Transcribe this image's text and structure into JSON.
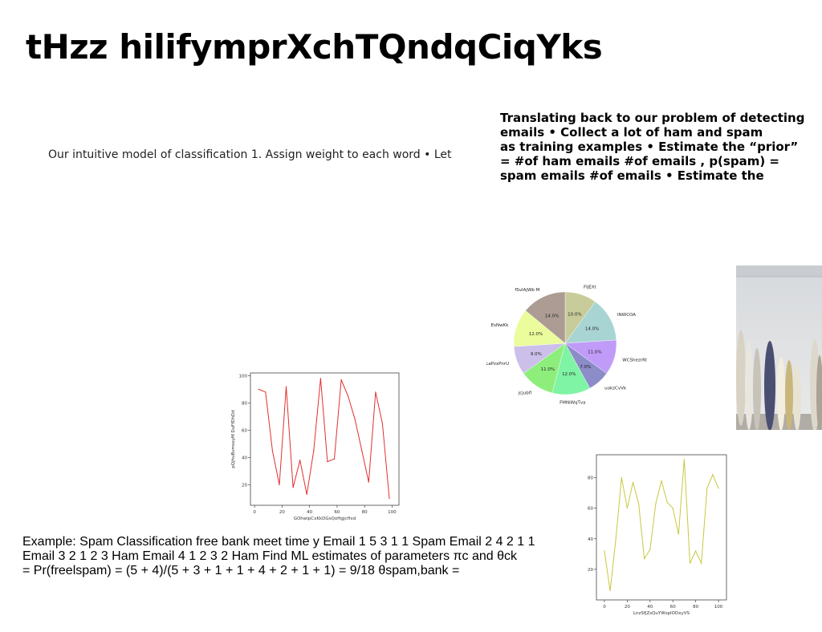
{
  "slide": {
    "title": "tHzz hilifymprXchTQndqCiqYks",
    "intro": "Our intuitive model of classification 1. Assign weight to each word • Let",
    "right_text": [
      "Translating back to our problem of detecting",
      "emails • Collect a lot of ham and spam",
      "as training examples • Estimate the “prior”",
      "= #of ham emails #of emails , p(spam) =",
      "spam emails #of emails • Estimate the"
    ],
    "example": [
      "Example: Spam Classification free bank meet time y Email 1 5 3 1 1 Spam Email 2 4 2 1 1",
      "Email 3 2 1 2 3 Ham Email 4 1 2 3 2 Ham Find ML estimates of parameters πc and θck",
      "= Pr(freelspam) = (5 + 4)/(5 + 3 + 1 + 1 + 4 + 2 + 1 + 1) = 9/18 θspam,bank ="
    ]
  },
  "chart_data": [
    {
      "type": "line",
      "xlabel": "GOhwipCxKkDGsQoHgjcHxd",
      "ylabel": "pQjhuBvmssyM DuFfDhDd",
      "xlim": [
        -3,
        105
      ],
      "ylim": [
        5,
        102
      ],
      "xticks": [
        0,
        20,
        40,
        60,
        80,
        100
      ],
      "yticks": [
        20,
        40,
        60,
        80,
        100
      ],
      "color": "#e03030",
      "x": [
        3,
        8,
        13,
        18,
        23,
        28,
        33,
        38,
        43,
        48,
        53,
        58,
        63,
        68,
        73,
        78,
        83,
        88,
        93,
        98
      ],
      "y": [
        90,
        88,
        45,
        20,
        92,
        18,
        38,
        13,
        45,
        98,
        37,
        39,
        97,
        85,
        68,
        45,
        22,
        88,
        65,
        10
      ]
    },
    {
      "type": "pie",
      "labels": [
        "FIjEXt",
        "INWCOA",
        "WCShezrRt",
        "uokzCvVk",
        "FMNiWqTva",
        "jcjubfl",
        "LaPzxPnrU",
        "EsNwKk",
        "fSvIAjWb M"
      ],
      "values": [
        10,
        14,
        11,
        7,
        12,
        11,
        9,
        12,
        14
      ],
      "value_labels": [
        "10.0%",
        "14.0%",
        "11.0%",
        "7.0%",
        "12.0%",
        "11.0%",
        "9.0%",
        "12.0%",
        "14.0%"
      ],
      "colors": [
        "#c8cc9a",
        "#a8d4d4",
        "#c09cf8",
        "#8c8cc8",
        "#7ef4a4",
        "#8eee7c",
        "#ccc0ea",
        "#eafc9c",
        "#ac9c94"
      ]
    },
    {
      "type": "line",
      "xlabel": "LnzSfJZsQuYWspIODxyVS",
      "ylabel": "uPgacGqMcwurQsLcHzIa",
      "xlim": [
        -7,
        107
      ],
      "ylim": [
        0,
        95
      ],
      "xticks": [
        0,
        20,
        40,
        60,
        80,
        100
      ],
      "yticks": [
        20,
        40,
        60,
        80
      ],
      "color": "#c8c840",
      "x": [
        0,
        5,
        10,
        15,
        20,
        25,
        30,
        35,
        40,
        45,
        50,
        55,
        60,
        65,
        70,
        75,
        80,
        85,
        90,
        95,
        100
      ],
      "y": [
        32,
        6,
        40,
        80,
        60,
        77,
        63,
        27,
        33,
        63,
        78,
        64,
        60,
        43,
        92,
        24,
        32,
        24,
        73,
        82,
        73
      ]
    }
  ]
}
